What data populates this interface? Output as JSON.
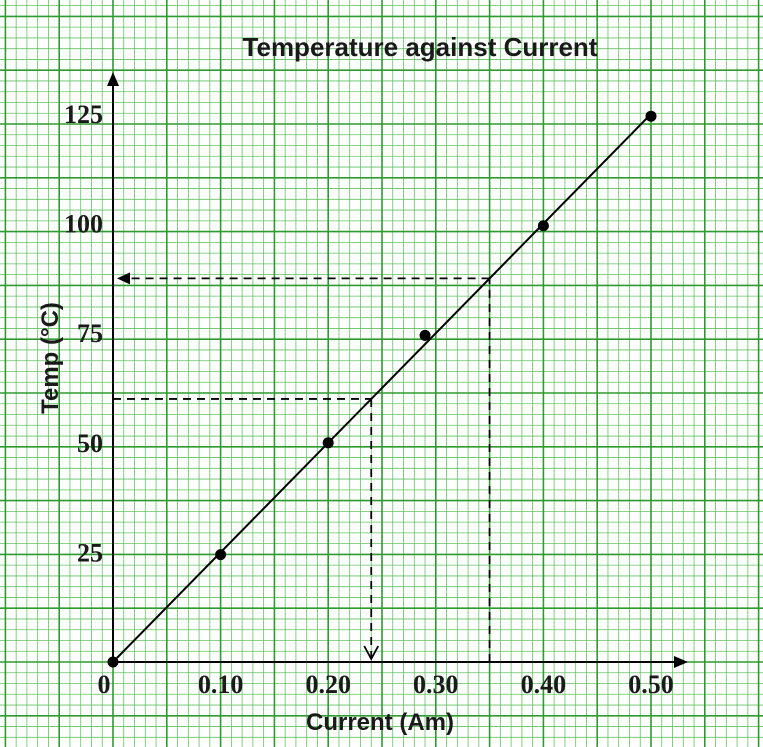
{
  "chart_data": {
    "type": "scatter",
    "title": "Temperature against Current",
    "xlabel": "Current (Am)",
    "ylabel": "Temp (°C)",
    "xlim": [
      0,
      0.5
    ],
    "ylim": [
      0,
      125
    ],
    "origin_label": "0",
    "x_ticks": [
      {
        "value": 0.1,
        "label": "0.10"
      },
      {
        "value": 0.2,
        "label": "0.20"
      },
      {
        "value": 0.3,
        "label": "0.30"
      },
      {
        "value": 0.4,
        "label": "0.40"
      },
      {
        "value": 0.5,
        "label": "0.50"
      }
    ],
    "y_ticks": [
      {
        "value": 25,
        "label": "25"
      },
      {
        "value": 50,
        "label": "50"
      },
      {
        "value": 75,
        "label": "75"
      },
      {
        "value": 100,
        "label": "100"
      },
      {
        "value": 125,
        "label": "125"
      }
    ],
    "points": [
      {
        "x": 0,
        "y": 0
      },
      {
        "x": 0.1,
        "y": 24.5
      },
      {
        "x": 0.2,
        "y": 50
      },
      {
        "x": 0.29,
        "y": 74.5
      },
      {
        "x": 0.4,
        "y": 99.5
      },
      {
        "x": 0.5,
        "y": 124.5
      }
    ],
    "best_fit_line": {
      "x": [
        0,
        0.5
      ],
      "y": [
        0,
        125
      ]
    },
    "projections": [
      {
        "x": 0.24,
        "y": 60,
        "arrow": "down"
      },
      {
        "x": 0.35,
        "y": 87.5,
        "arrow": "left"
      }
    ],
    "grid": true,
    "colors": {
      "background": "#ffffff",
      "grid_minor": "#63c263",
      "grid_major": "#2f9a2f",
      "ink": "#000000"
    }
  }
}
